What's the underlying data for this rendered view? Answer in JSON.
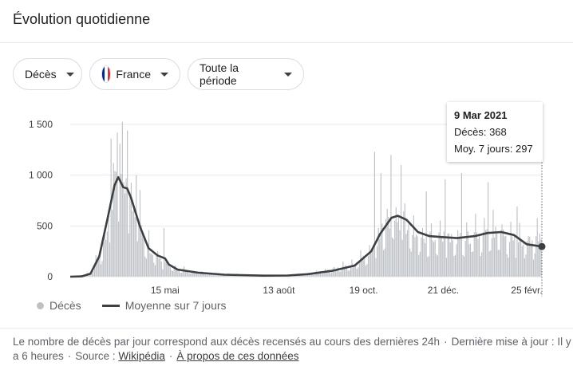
{
  "title": "Évolution quotidienne",
  "filters": {
    "metric": "Décès",
    "country": "France",
    "period": "Toute la période"
  },
  "colors": {
    "bars": "#bdc1c6",
    "average_line": "#3c4043",
    "flag": [
      "#002395",
      "#ffffff",
      "#ed2939"
    ]
  },
  "tooltip": {
    "date": "9 Mar 2021",
    "deaths_label": "Décès: 368",
    "avg_label": "Moy. 7 jours: 297"
  },
  "legend": {
    "bars": "Décès",
    "line": "Moyenne sur 7 jours"
  },
  "footer": {
    "text": "Le nombre de décès par jour correspond aux décès recensés au cours des dernières 24h",
    "updated": "Dernière mise à jour : Il y a 6 heures",
    "source_label": "Source :",
    "source_link": "Wikipédia",
    "about_link": "À propos de ces données"
  },
  "chart_data": {
    "type": "bar",
    "overlay": "line",
    "x_start": "2020-03-01",
    "x_end": "2021-03-09",
    "x_ticks": [
      {
        "date": "2020-05-15",
        "label": "15 mai"
      },
      {
        "date": "2020-08-13",
        "label": "13 août"
      },
      {
        "date": "2020-10-19",
        "label": "19 oct."
      },
      {
        "date": "2020-12-21",
        "label": "21 déc."
      },
      {
        "date": "2021-02-25",
        "label": "25 févr."
      }
    ],
    "y_ticks": [
      {
        "value": 0,
        "label": "0"
      },
      {
        "value": 500,
        "label": "500"
      },
      {
        "value": 1000,
        "label": "1 000"
      },
      {
        "value": 1500,
        "label": "1 500"
      }
    ],
    "ylim": [
      0,
      1500
    ],
    "grid": true,
    "legend_position": "bottom-left",
    "series": [
      {
        "name": "Décès",
        "kind": "bars",
        "keyframes": [
          [
            "2020-03-01",
            0
          ],
          [
            "2020-03-10",
            3
          ],
          [
            "2020-03-17",
            40
          ],
          [
            "2020-03-24",
            220
          ],
          [
            "2020-03-31",
            500
          ],
          [
            "2020-04-05",
            800
          ],
          [
            "2020-04-08",
            1000
          ],
          [
            "2020-04-12",
            950
          ],
          [
            "2020-04-18",
            800
          ],
          [
            "2020-04-25",
            550
          ],
          [
            "2020-05-02",
            300
          ],
          [
            "2020-05-09",
            200
          ],
          [
            "2020-05-16",
            130
          ],
          [
            "2020-05-25",
            80
          ],
          [
            "2020-06-05",
            50
          ],
          [
            "2020-06-20",
            30
          ],
          [
            "2020-07-10",
            20
          ],
          [
            "2020-08-01",
            10
          ],
          [
            "2020-08-20",
            15
          ],
          [
            "2020-09-05",
            30
          ],
          [
            "2020-09-25",
            70
          ],
          [
            "2020-10-12",
            120
          ],
          [
            "2020-10-25",
            250
          ],
          [
            "2020-11-01",
            400
          ],
          [
            "2020-11-10",
            600
          ],
          [
            "2020-11-20",
            550
          ],
          [
            "2020-12-01",
            400
          ],
          [
            "2020-12-15",
            380
          ],
          [
            "2021-01-01",
            360
          ],
          [
            "2021-01-20",
            400
          ],
          [
            "2021-02-05",
            420
          ],
          [
            "2021-02-20",
            340
          ],
          [
            "2021-03-09",
            368
          ]
        ],
        "spikes": [
          [
            "2020-04-02",
            1360
          ],
          [
            "2020-04-04",
            1120
          ],
          [
            "2020-04-05",
            1040
          ],
          [
            "2020-04-07",
            1420
          ],
          [
            "2020-04-09",
            1310
          ],
          [
            "2020-04-15",
            1440
          ],
          [
            "2020-04-22",
            1000
          ],
          [
            "2020-05-14",
            480
          ],
          [
            "2020-10-28",
            1230
          ],
          [
            "2020-11-02",
            1020
          ],
          [
            "2020-11-10",
            1200
          ],
          [
            "2020-11-18",
            1100
          ],
          [
            "2020-12-08",
            840
          ],
          [
            "2020-12-23",
            960
          ],
          [
            "2021-01-05",
            1020
          ],
          [
            "2021-01-26",
            930
          ],
          [
            "2021-02-18",
            690
          ]
        ]
      },
      {
        "name": "Moyenne sur 7 jours",
        "kind": "line",
        "points": [
          [
            "2020-03-01",
            0
          ],
          [
            "2020-03-10",
            3
          ],
          [
            "2020-03-17",
            30
          ],
          [
            "2020-03-24",
            200
          ],
          [
            "2020-03-31",
            600
          ],
          [
            "2020-04-05",
            900
          ],
          [
            "2020-04-08",
            980
          ],
          [
            "2020-04-12",
            880
          ],
          [
            "2020-04-15",
            870
          ],
          [
            "2020-04-18",
            780
          ],
          [
            "2020-04-25",
            500
          ],
          [
            "2020-05-02",
            280
          ],
          [
            "2020-05-09",
            210
          ],
          [
            "2020-05-15",
            180
          ],
          [
            "2020-05-18",
            120
          ],
          [
            "2020-05-25",
            70
          ],
          [
            "2020-06-10",
            40
          ],
          [
            "2020-07-01",
            20
          ],
          [
            "2020-08-01",
            10
          ],
          [
            "2020-08-20",
            12
          ],
          [
            "2020-09-05",
            25
          ],
          [
            "2020-09-25",
            60
          ],
          [
            "2020-10-12",
            110
          ],
          [
            "2020-10-25",
            250
          ],
          [
            "2020-11-01",
            420
          ],
          [
            "2020-11-10",
            580
          ],
          [
            "2020-11-15",
            600
          ],
          [
            "2020-11-22",
            560
          ],
          [
            "2020-12-01",
            440
          ],
          [
            "2020-12-10",
            400
          ],
          [
            "2020-12-20",
            390
          ],
          [
            "2021-01-01",
            380
          ],
          [
            "2021-01-15",
            400
          ],
          [
            "2021-01-25",
            430
          ],
          [
            "2021-02-05",
            440
          ],
          [
            "2021-02-15",
            410
          ],
          [
            "2021-02-25",
            320
          ],
          [
            "2021-03-09",
            297
          ]
        ]
      }
    ],
    "highlight": {
      "date": "2021-03-09",
      "deaths": 368,
      "average": 297
    }
  }
}
